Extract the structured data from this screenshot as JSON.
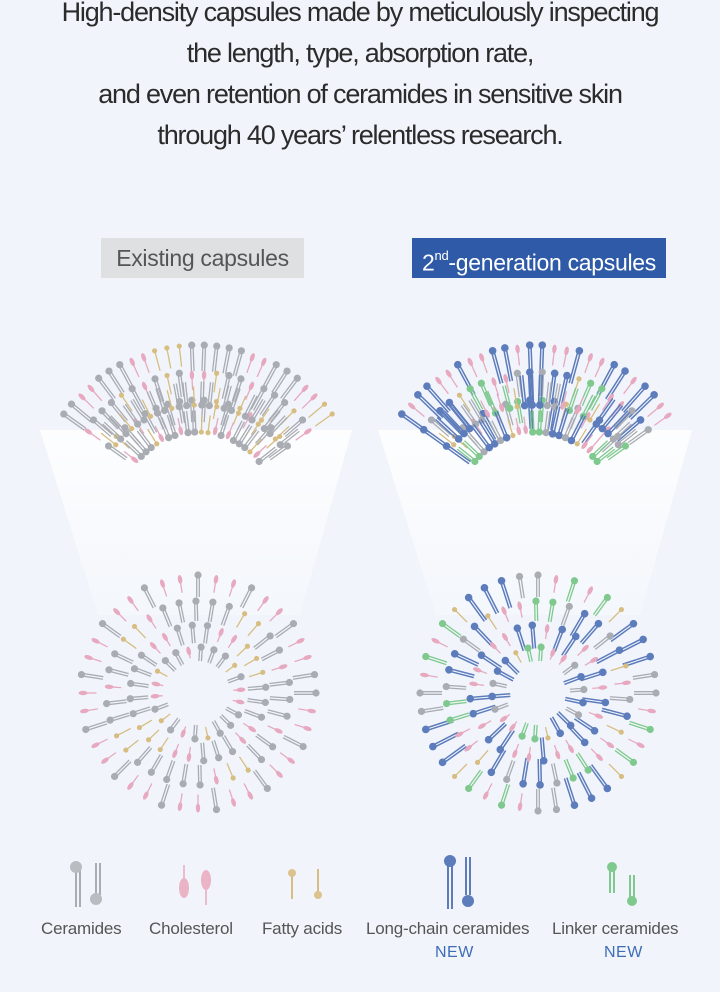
{
  "headline": {
    "lines": [
      "High-density capsules made by meticulously inspecting",
      "the length, type, absorption rate,",
      "and even retention of ceramides in sensitive skin",
      "through 40 years’ relentless research."
    ]
  },
  "tags": {
    "existing": "Existing capsules",
    "new_prefix": "2",
    "new_sup": "nd",
    "new_rest": "-generation capsules"
  },
  "legend": {
    "ceramides": "Ceramides",
    "cholesterol": "Cholesterol",
    "fatty_acids": "Fatty acids",
    "long_chain": "Long-chain ceramides",
    "linker": "Linker ceramides",
    "new_badge": "NEW"
  },
  "colors": {
    "ceramide": "#a9adb3",
    "cholesterol": "#e7a9bf",
    "fatty_acid": "#d7bd82",
    "long_chain": "#5d7cbc",
    "linker": "#7fc98e",
    "tag_new_bg": "#2f5aa8"
  }
}
